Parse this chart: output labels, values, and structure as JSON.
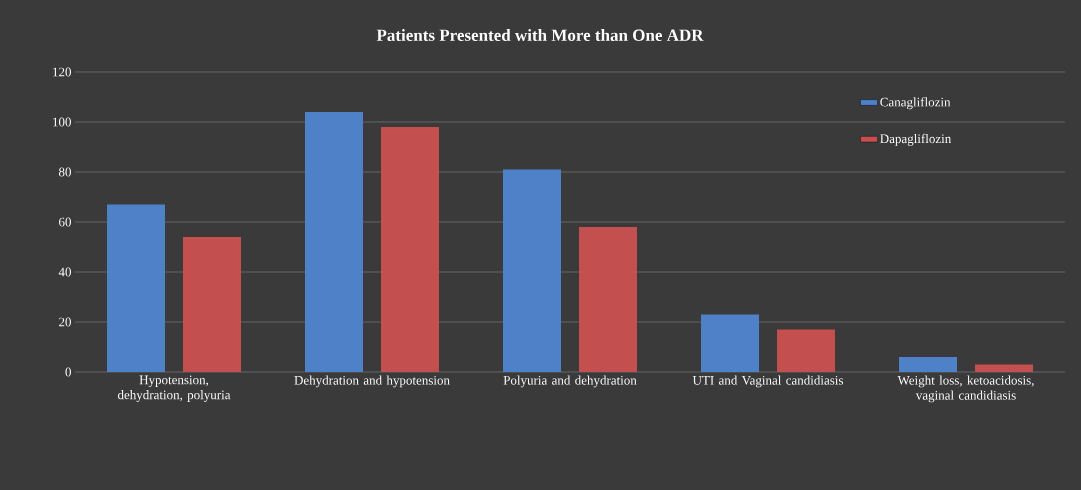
{
  "chart_data": {
    "type": "bar",
    "title": "Patients Presented with More than One ADR",
    "categories": [
      "Hypotension, dehydration, polyuria",
      "Dehydration and hypotension",
      "Polyuria and dehydration",
      "UTI and Vaginal candidiasis",
      "Weight loss, ketoacidosis, vaginal candidiasis"
    ],
    "series": [
      {
        "name": "Canagliflozin",
        "color": "#4f81c9",
        "values": [
          67,
          104,
          81,
          23,
          6
        ]
      },
      {
        "name": "Dapagliflozin",
        "color": "#c3504f",
        "values": [
          54,
          98,
          58,
          17,
          3
        ]
      }
    ],
    "ylim": [
      0,
      120
    ],
    "yticks": [
      0,
      20,
      40,
      60,
      80,
      100,
      120
    ],
    "grid": "y",
    "legend": "top right"
  }
}
